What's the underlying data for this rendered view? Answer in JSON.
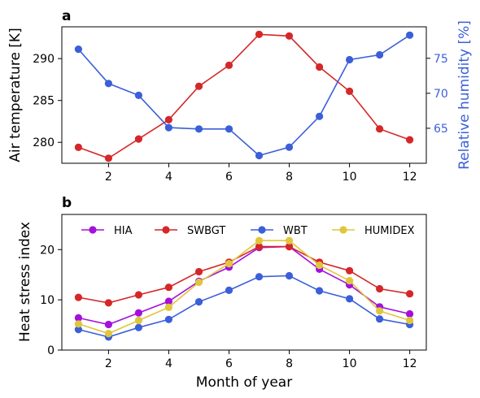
{
  "chart_data": [
    {
      "type": "line",
      "panel_label": "a",
      "x": [
        1,
        2,
        3,
        4,
        5,
        6,
        7,
        8,
        9,
        10,
        11,
        12
      ],
      "xticks": [
        "2",
        "4",
        "6",
        "8",
        "10",
        "12"
      ],
      "xlim": [
        0.45,
        12.55
      ],
      "ylabel": "Air temperature [K]",
      "ylim": [
        277.5,
        293.8
      ],
      "yticks": [
        "280",
        "285",
        "290"
      ],
      "y2label": "Relative humidity [%]",
      "y2lim": [
        60.0,
        79.5
      ],
      "y2ticks": [
        "65",
        "70",
        "75"
      ],
      "series": [
        {
          "axis": "left",
          "color": "#d62728",
          "values": [
            279.4,
            278.1,
            280.4,
            282.7,
            286.7,
            289.2,
            292.9,
            292.7,
            289.0,
            286.1,
            281.6,
            280.3
          ]
        },
        {
          "axis": "right",
          "color": "#3b5fd9",
          "values": [
            76.3,
            71.4,
            69.7,
            65.1,
            64.9,
            64.9,
            61.1,
            62.3,
            66.7,
            74.8,
            75.5,
            78.3
          ]
        }
      ]
    },
    {
      "type": "line",
      "panel_label": "b",
      "x": [
        1,
        2,
        3,
        4,
        5,
        6,
        7,
        8,
        9,
        10,
        11,
        12
      ],
      "xticks": [
        "2",
        "4",
        "6",
        "8",
        "10",
        "12"
      ],
      "xlim": [
        0.45,
        12.55
      ],
      "xlabel": "Month of year",
      "ylabel": "Heat stress index",
      "ylim": [
        0,
        27
      ],
      "yticks": [
        "0",
        "10",
        "20"
      ],
      "legend": "top, 4 columns",
      "series": [
        {
          "name": "HIA",
          "color": "#a40fdc",
          "values": [
            6.4,
            5.1,
            7.4,
            9.7,
            13.7,
            16.5,
            20.4,
            20.6,
            16.1,
            13.0,
            8.6,
            7.2
          ]
        },
        {
          "name": "SWBGT",
          "color": "#d62728",
          "values": [
            10.5,
            9.4,
            11.0,
            12.5,
            15.6,
            17.5,
            20.6,
            20.6,
            17.5,
            15.8,
            12.2,
            11.2
          ]
        },
        {
          "name": "WBT",
          "color": "#3b5fd9",
          "values": [
            4.1,
            2.6,
            4.5,
            6.1,
            9.6,
            11.9,
            14.6,
            14.8,
            11.8,
            10.2,
            6.2,
            5.1
          ]
        },
        {
          "name": "HUMIDEX",
          "color": "#e0c63c",
          "values": [
            5.2,
            3.3,
            5.9,
            8.5,
            13.5,
            17.2,
            21.8,
            21.8,
            16.9,
            13.8,
            7.8,
            5.9
          ]
        }
      ]
    }
  ]
}
